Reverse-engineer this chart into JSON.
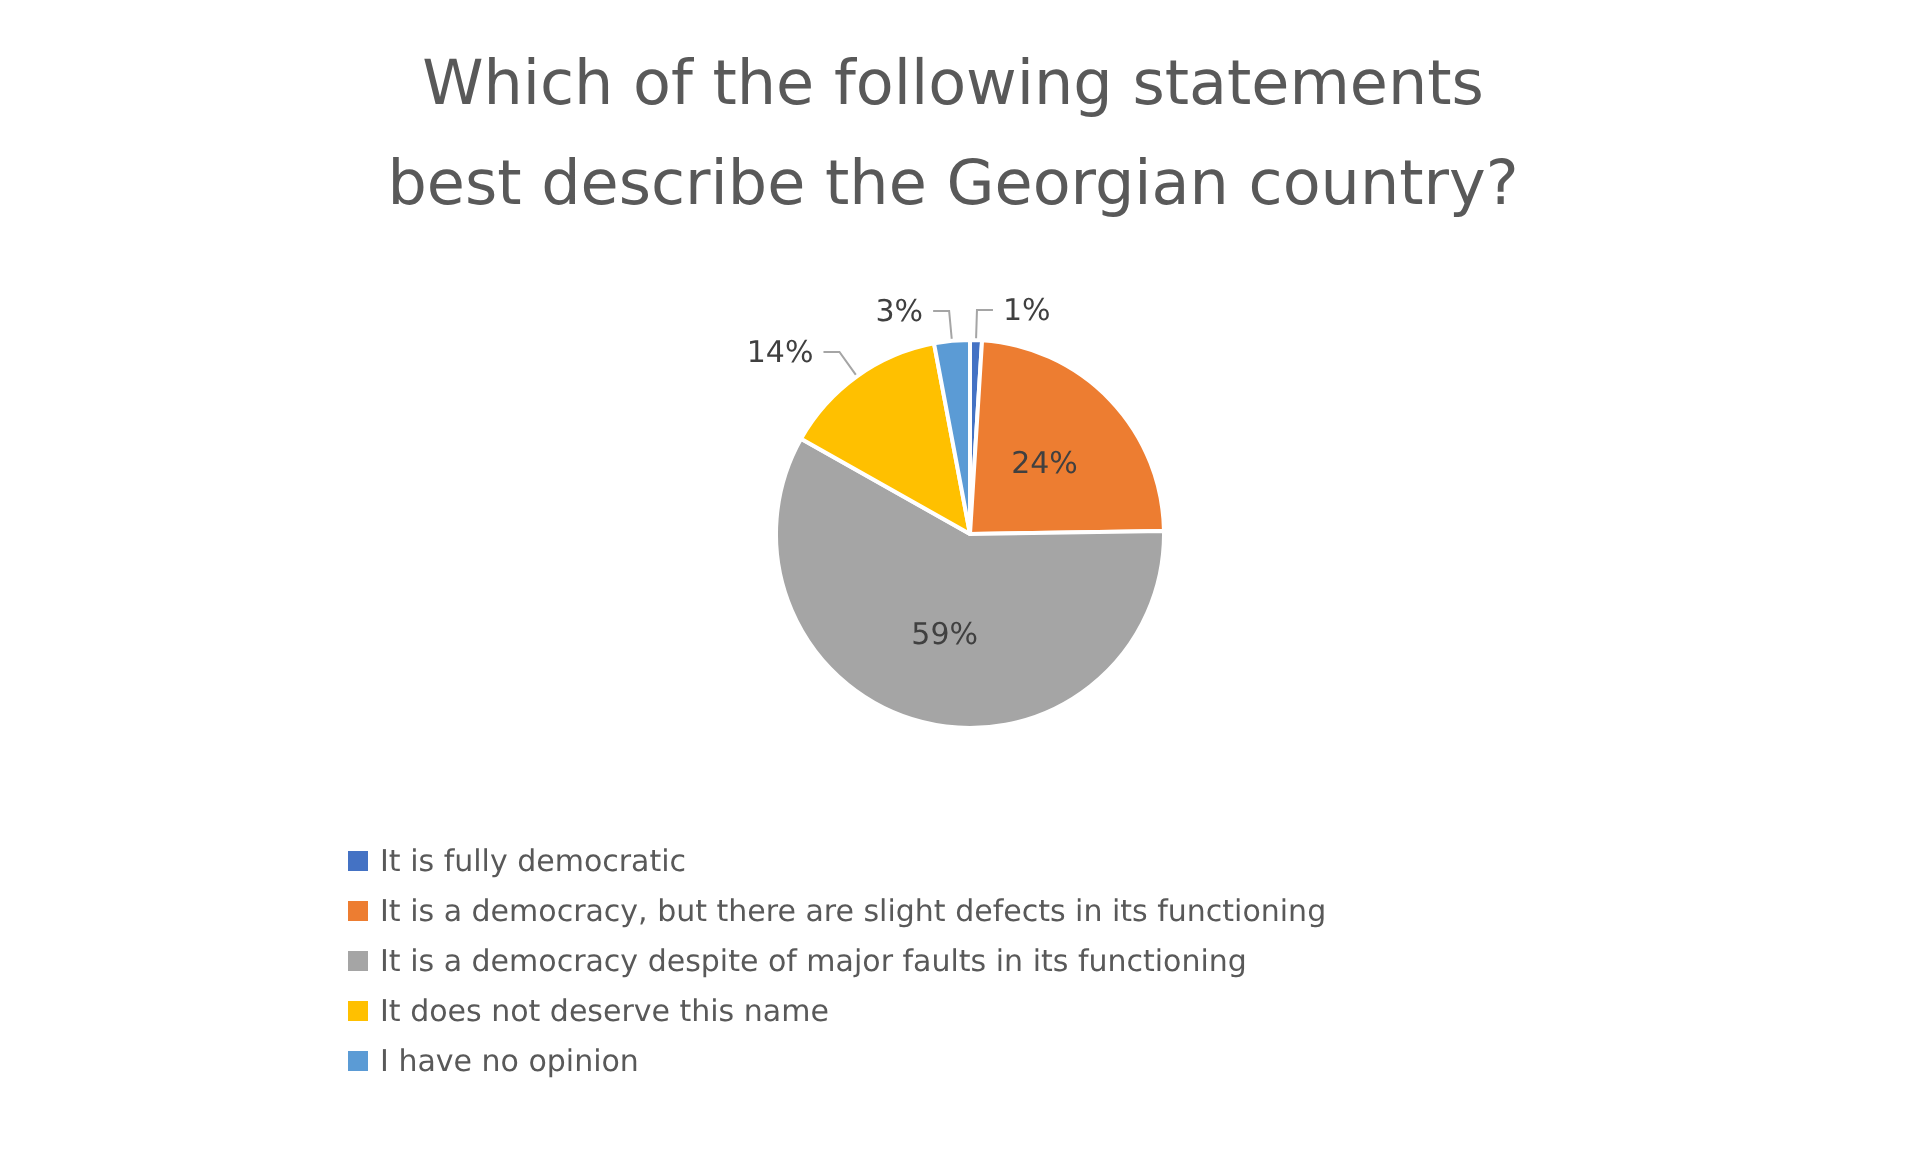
{
  "chart_data": {
    "type": "pie",
    "title": "Which of the following statements best describe the Georgian country?",
    "categories": [
      "It is fully democratic",
      "It is a democracy, but there are slight defects in its functioning",
      "It is a democracy despite of major faults in its functioning",
      "It does not deserve this name",
      "I have no opinion"
    ],
    "values": [
      1,
      24,
      59,
      14,
      3
    ],
    "colors": [
      "#4472c4",
      "#ed7d31",
      "#a5a5a5",
      "#ffc000",
      "#5b9bd5"
    ],
    "value_labels": [
      "1%",
      "24%",
      "59%",
      "14%",
      "3%"
    ],
    "legend": "bottom"
  }
}
